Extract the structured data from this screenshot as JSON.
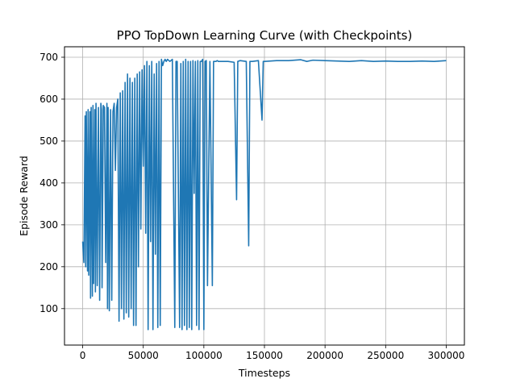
{
  "chart_data": {
    "type": "line",
    "title": "PPO TopDown Learning Curve (with Checkpoints)",
    "xlabel": "Timesteps",
    "ylabel": "Episode Reward",
    "xlim": [
      -15000,
      315000
    ],
    "ylim": [
      13,
      725
    ],
    "xticks": [
      0,
      50000,
      100000,
      150000,
      200000,
      250000,
      300000
    ],
    "xtick_labels": [
      "0",
      "50000",
      "100000",
      "150000",
      "200000",
      "250000",
      "300000"
    ],
    "yticks": [
      100,
      200,
      300,
      400,
      500,
      600,
      700
    ],
    "ytick_labels": [
      "100",
      "200",
      "300",
      "400",
      "500",
      "600",
      "700"
    ],
    "grid": true,
    "legend": "none",
    "series": [
      {
        "color": "#1f77b4",
        "x": [
          0,
          1000,
          2000,
          2500,
          3000,
          4000,
          4500,
          5000,
          6000,
          6500,
          7000,
          8000,
          8500,
          9000,
          10000,
          10500,
          11000,
          12000,
          13000,
          14000,
          15000,
          15500,
          16000,
          17000,
          18000,
          19000,
          20000,
          20500,
          21000,
          22000,
          23000,
          24000,
          25000,
          26000,
          27000,
          28000,
          29000,
          30000,
          31000,
          32000,
          33000,
          34000,
          35000,
          36000,
          37000,
          38000,
          39000,
          40000,
          41000,
          42000,
          43000,
          44000,
          45000,
          46000,
          47000,
          48000,
          49000,
          50000,
          51000,
          52000,
          53000,
          54000,
          55000,
          56000,
          57000,
          58000,
          59000,
          60000,
          61000,
          62000,
          63000,
          64000,
          65000,
          66000,
          67000,
          68000,
          69000,
          70000,
          72000,
          74000,
          76000,
          77000,
          78000,
          80000,
          81000,
          82000,
          83000,
          84000,
          85000,
          86000,
          87000,
          88000,
          89000,
          90000,
          91000,
          92000,
          93000,
          94000,
          95000,
          96000,
          97000,
          98000,
          99000,
          100000,
          101000,
          102000,
          103000,
          105000,
          107000,
          108000,
          110000,
          111000,
          112000,
          115000,
          120000,
          125000,
          127000,
          128000,
          130000,
          135000,
          137000,
          138000,
          140000,
          145000,
          148000,
          149000,
          150000,
          160000,
          170000,
          180000,
          185000,
          190000,
          200000,
          210000,
          220000,
          230000,
          240000,
          250000,
          260000,
          270000,
          280000,
          290000,
          300000
        ],
        "y": [
          260,
          210,
          560,
          200,
          570,
          190,
          575,
          180,
          570,
          125,
          580,
          130,
          585,
          160,
          575,
          140,
          590,
          155,
          580,
          120,
          590,
          575,
          150,
          585,
          580,
          210,
          590,
          100,
          580,
          95,
          575,
          120,
          570,
          590,
          430,
          580,
          600,
          70,
          615,
          100,
          620,
          75,
          640,
          90,
          660,
          80,
          650,
          100,
          640,
          60,
          650,
          60,
          660,
          200,
          665,
          290,
          670,
          440,
          680,
          280,
          690,
          50,
          680,
          260,
          690,
          50,
          660,
          230,
          685,
          55,
          690,
          60,
          695,
          680,
          690,
          695,
          690,
          695,
          690,
          695,
          55,
          690,
          690,
          55,
          685,
          50,
          690,
          60,
          695,
          50,
          690,
          55,
          690,
          50,
          692,
          375,
          690,
          60,
          692,
          50,
          690,
          690,
          695,
          50,
          690,
          692,
          155,
          690,
          155,
          690,
          690,
          692,
          690,
          690,
          690,
          688,
          360,
          690,
          692,
          690,
          250,
          690,
          690,
          692,
          550,
          690,
          690,
          692,
          692,
          694,
          690,
          693,
          692,
          691,
          690,
          692,
          690,
          691,
          690,
          690,
          691,
          690,
          692
        ]
      }
    ]
  }
}
